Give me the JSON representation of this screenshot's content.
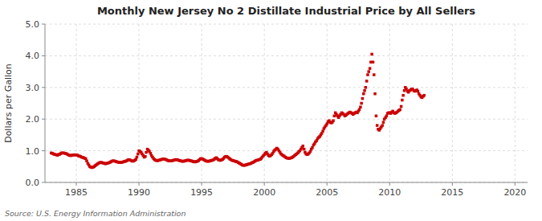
{
  "chart_data": {
    "type": "scatter",
    "title": "Monthly New Jersey No 2 Distillate Industrial Price by All Sellers",
    "y_label": "Dollars per Gallon",
    "annotations": [
      "Source: U.S. Energy Information Administration"
    ],
    "color": "#cc0000",
    "marker": "square",
    "grid": true,
    "xlim": [
      1982.5,
      2021
    ],
    "ylim": [
      0.0,
      5.0
    ],
    "xticks": [
      1985,
      1990,
      1995,
      2000,
      2005,
      2010,
      2015,
      2020
    ],
    "yticks": [
      {
        "value": 0.0,
        "label": "0.0"
      },
      {
        "value": 1.0,
        "label": "1.0"
      },
      {
        "value": 2.0,
        "label": "2.0"
      },
      {
        "value": 3.0,
        "label": "3.0"
      },
      {
        "value": 4.0,
        "label": "4.0"
      },
      {
        "value": 5.0,
        "label": "5.0"
      }
    ],
    "x": [
      1983.0,
      1983.08,
      1983.17,
      1983.25,
      1983.33,
      1983.42,
      1983.5,
      1983.58,
      1983.67,
      1983.75,
      1983.83,
      1983.92,
      1984.0,
      1984.08,
      1984.17,
      1984.25,
      1984.33,
      1984.42,
      1984.5,
      1984.58,
      1984.67,
      1984.75,
      1984.83,
      1984.92,
      1985.0,
      1985.08,
      1985.17,
      1985.25,
      1985.33,
      1985.42,
      1985.5,
      1985.58,
      1985.67,
      1985.75,
      1985.83,
      1985.92,
      1986.0,
      1986.08,
      1986.17,
      1986.25,
      1986.33,
      1986.42,
      1986.5,
      1986.58,
      1986.67,
      1986.75,
      1986.83,
      1986.92,
      1987.0,
      1987.08,
      1987.17,
      1987.25,
      1987.33,
      1987.42,
      1987.5,
      1987.58,
      1987.67,
      1987.75,
      1987.83,
      1987.92,
      1988.0,
      1988.08,
      1988.17,
      1988.25,
      1988.33,
      1988.42,
      1988.5,
      1988.58,
      1988.67,
      1988.75,
      1988.83,
      1988.92,
      1989.0,
      1989.08,
      1989.17,
      1989.25,
      1989.33,
      1989.42,
      1989.5,
      1989.58,
      1989.67,
      1989.75,
      1989.83,
      1989.92,
      1990.0,
      1990.08,
      1990.17,
      1990.25,
      1990.33,
      1990.42,
      1990.5,
      1990.58,
      1990.67,
      1990.75,
      1990.83,
      1990.92,
      1991.0,
      1991.08,
      1991.17,
      1991.25,
      1991.33,
      1991.42,
      1991.5,
      1991.58,
      1991.67,
      1991.75,
      1991.83,
      1991.92,
      1992.0,
      1992.08,
      1992.17,
      1992.25,
      1992.33,
      1992.42,
      1992.5,
      1992.58,
      1992.67,
      1992.75,
      1992.83,
      1992.92,
      1993.0,
      1993.08,
      1993.17,
      1993.25,
      1993.33,
      1993.42,
      1993.5,
      1993.58,
      1993.67,
      1993.75,
      1993.83,
      1993.92,
      1994.0,
      1994.08,
      1994.17,
      1994.25,
      1994.33,
      1994.42,
      1994.5,
      1994.58,
      1994.67,
      1994.75,
      1994.83,
      1994.92,
      1995.0,
      1995.08,
      1995.17,
      1995.25,
      1995.33,
      1995.42,
      1995.5,
      1995.58,
      1995.67,
      1995.75,
      1995.83,
      1995.92,
      1996.0,
      1996.08,
      1996.17,
      1996.25,
      1996.33,
      1996.42,
      1996.5,
      1996.58,
      1996.67,
      1996.75,
      1996.83,
      1996.92,
      1997.0,
      1997.08,
      1997.17,
      1997.25,
      1997.33,
      1997.42,
      1997.5,
      1997.58,
      1997.67,
      1997.75,
      1997.83,
      1997.92,
      1998.0,
      1998.08,
      1998.17,
      1998.25,
      1998.33,
      1998.42,
      1998.5,
      1998.58,
      1998.67,
      1998.75,
      1998.83,
      1998.92,
      1999.0,
      1999.08,
      1999.17,
      1999.25,
      1999.33,
      1999.42,
      1999.5,
      1999.58,
      1999.67,
      1999.75,
      1999.83,
      1999.92,
      2000.0,
      2000.08,
      2000.17,
      2000.25,
      2000.33,
      2000.42,
      2000.5,
      2000.58,
      2000.67,
      2000.75,
      2000.83,
      2000.92,
      2001.0,
      2001.08,
      2001.17,
      2001.25,
      2001.33,
      2001.42,
      2001.5,
      2001.58,
      2001.67,
      2001.75,
      2001.83,
      2001.92,
      2002.0,
      2002.08,
      2002.17,
      2002.25,
      2002.33,
      2002.42,
      2002.5,
      2002.58,
      2002.67,
      2002.75,
      2002.83,
      2002.92,
      2003.0,
      2003.08,
      2003.17,
      2003.25,
      2003.33,
      2003.42,
      2003.5,
      2003.58,
      2003.67,
      2003.75,
      2003.83,
      2003.92,
      2004.0,
      2004.08,
      2004.17,
      2004.25,
      2004.33,
      2004.42,
      2004.5,
      2004.58,
      2004.67,
      2004.75,
      2004.83,
      2004.92,
      2005.0,
      2005.08,
      2005.17,
      2005.25,
      2005.33,
      2005.42,
      2005.5,
      2005.58,
      2005.67,
      2005.75,
      2005.83,
      2005.92,
      2006.0,
      2006.08,
      2006.17,
      2006.25,
      2006.33,
      2006.42,
      2006.5,
      2006.58,
      2006.67,
      2006.75,
      2006.83,
      2006.92,
      2007.0,
      2007.08,
      2007.17,
      2007.25,
      2007.33,
      2007.42,
      2007.5,
      2007.58,
      2007.67,
      2007.75,
      2007.83,
      2007.92,
      2008.0,
      2008.08,
      2008.17,
      2008.25,
      2008.33,
      2008.42,
      2008.5,
      2008.58,
      2008.67,
      2008.75,
      2008.83,
      2008.92,
      2009.0,
      2009.08,
      2009.17,
      2009.25,
      2009.33,
      2009.42,
      2009.5,
      2009.58,
      2009.67,
      2009.75,
      2009.83,
      2009.92,
      2010.0,
      2010.08,
      2010.17,
      2010.25,
      2010.33,
      2010.42,
      2010.5,
      2010.58,
      2010.67,
      2010.75,
      2010.83,
      2010.92,
      2011.0,
      2011.08,
      2011.17,
      2011.25,
      2011.33,
      2011.42,
      2011.5,
      2011.58,
      2011.67,
      2011.75,
      2011.83,
      2011.92,
      2012.0,
      2012.08,
      2012.17,
      2012.25,
      2012.33,
      2012.42,
      2012.5,
      2012.58,
      2012.67,
      2012.75
    ],
    "values": [
      0.93,
      0.92,
      0.9,
      0.89,
      0.88,
      0.87,
      0.86,
      0.88,
      0.89,
      0.91,
      0.93,
      0.93,
      0.93,
      0.92,
      0.91,
      0.9,
      0.88,
      0.86,
      0.85,
      0.85,
      0.86,
      0.87,
      0.87,
      0.87,
      0.87,
      0.86,
      0.84,
      0.83,
      0.82,
      0.8,
      0.79,
      0.78,
      0.76,
      0.75,
      0.68,
      0.6,
      0.55,
      0.5,
      0.48,
      0.47,
      0.48,
      0.5,
      0.53,
      0.55,
      0.58,
      0.6,
      0.62,
      0.63,
      0.63,
      0.62,
      0.61,
      0.6,
      0.59,
      0.6,
      0.61,
      0.62,
      0.63,
      0.65,
      0.67,
      0.68,
      0.68,
      0.67,
      0.66,
      0.65,
      0.64,
      0.63,
      0.63,
      0.63,
      0.64,
      0.65,
      0.66,
      0.67,
      0.68,
      0.7,
      0.72,
      0.71,
      0.7,
      0.68,
      0.67,
      0.68,
      0.7,
      0.73,
      0.8,
      0.9,
      1.0,
      0.98,
      0.95,
      0.9,
      0.85,
      0.8,
      0.82,
      0.95,
      1.05,
      1.02,
      0.98,
      0.92,
      0.85,
      0.8,
      0.75,
      0.72,
      0.7,
      0.69,
      0.69,
      0.7,
      0.71,
      0.72,
      0.73,
      0.74,
      0.74,
      0.73,
      0.72,
      0.7,
      0.69,
      0.68,
      0.68,
      0.68,
      0.69,
      0.7,
      0.71,
      0.72,
      0.72,
      0.71,
      0.7,
      0.69,
      0.68,
      0.67,
      0.67,
      0.67,
      0.68,
      0.69,
      0.7,
      0.7,
      0.7,
      0.69,
      0.68,
      0.67,
      0.66,
      0.65,
      0.65,
      0.66,
      0.67,
      0.69,
      0.72,
      0.75,
      0.75,
      0.74,
      0.72,
      0.7,
      0.68,
      0.67,
      0.67,
      0.67,
      0.68,
      0.69,
      0.7,
      0.71,
      0.73,
      0.76,
      0.78,
      0.75,
      0.72,
      0.7,
      0.7,
      0.71,
      0.73,
      0.76,
      0.8,
      0.82,
      0.82,
      0.8,
      0.77,
      0.74,
      0.72,
      0.7,
      0.69,
      0.68,
      0.67,
      0.66,
      0.65,
      0.63,
      0.61,
      0.59,
      0.57,
      0.55,
      0.54,
      0.54,
      0.55,
      0.56,
      0.57,
      0.58,
      0.59,
      0.6,
      0.62,
      0.63,
      0.65,
      0.67,
      0.69,
      0.7,
      0.71,
      0.72,
      0.73,
      0.76,
      0.8,
      0.84,
      0.88,
      0.92,
      0.95,
      0.9,
      0.85,
      0.83,
      0.85,
      0.88,
      0.92,
      0.98,
      1.02,
      1.05,
      1.08,
      1.05,
      1.0,
      0.95,
      0.9,
      0.87,
      0.85,
      0.83,
      0.8,
      0.78,
      0.77,
      0.76,
      0.76,
      0.77,
      0.78,
      0.8,
      0.82,
      0.85,
      0.88,
      0.9,
      0.93,
      0.97,
      1.0,
      1.05,
      1.1,
      1.15,
      1.05,
      0.95,
      0.9,
      0.88,
      0.9,
      0.93,
      0.98,
      1.05,
      1.1,
      1.18,
      1.22,
      1.28,
      1.32,
      1.38,
      1.42,
      1.45,
      1.5,
      1.55,
      1.62,
      1.7,
      1.75,
      1.8,
      1.85,
      1.92,
      1.95,
      1.9,
      1.88,
      1.9,
      1.95,
      2.1,
      2.2,
      2.15,
      2.1,
      2.05,
      2.1,
      2.15,
      2.2,
      2.18,
      2.15,
      2.1,
      2.12,
      2.15,
      2.18,
      2.2,
      2.22,
      2.2,
      2.18,
      2.15,
      2.18,
      2.2,
      2.22,
      2.2,
      2.25,
      2.3,
      2.38,
      2.5,
      2.65,
      2.8,
      2.9,
      3.0,
      3.2,
      3.4,
      3.5,
      3.6,
      3.8,
      4.05,
      3.8,
      3.4,
      2.8,
      2.1,
      1.8,
      1.68,
      1.65,
      1.7,
      1.75,
      1.8,
      1.9,
      2.0,
      2.05,
      2.1,
      2.18,
      2.2,
      2.2,
      2.18,
      2.22,
      2.25,
      2.2,
      2.18,
      2.2,
      2.22,
      2.25,
      2.28,
      2.3,
      2.4,
      2.6,
      2.75,
      2.9,
      3.0,
      2.95,
      2.88,
      2.85,
      2.9,
      2.92,
      2.95,
      2.95,
      2.9,
      2.88,
      2.9,
      2.92,
      2.88,
      2.8,
      2.75,
      2.7,
      2.68,
      2.72,
      2.75
    ]
  }
}
